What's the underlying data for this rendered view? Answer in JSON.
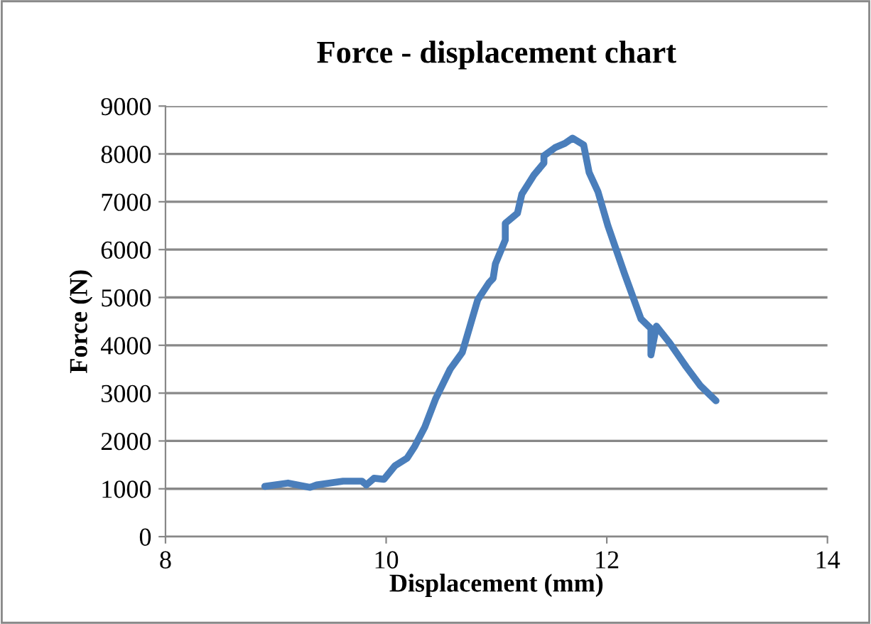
{
  "chart_data": {
    "type": "line",
    "title": "Force - displacement chart",
    "xlabel": "Displacement (mm)",
    "ylabel": "Force (N)",
    "series": [
      {
        "color": "#4a7ebb",
        "x": [
          8.9,
          9.11,
          9.31,
          9.37,
          9.61,
          9.78,
          9.82,
          9.89,
          9.98,
          10.08,
          10.19,
          10.26,
          10.35,
          10.45,
          10.58,
          10.69,
          10.76,
          10.83,
          10.93,
          10.97,
          10.99,
          11.08,
          11.08,
          11.19,
          11.23,
          11.34,
          11.43,
          11.43,
          11.53,
          11.62,
          11.69,
          11.79,
          11.84,
          11.92,
          12.01,
          12.16,
          12.31,
          12.4,
          12.4,
          12.45,
          12.57,
          12.72,
          12.85,
          12.99
        ],
        "values": [
          1050,
          1120,
          1030,
          1080,
          1160,
          1160,
          1080,
          1220,
          1200,
          1480,
          1640,
          1890,
          2290,
          2890,
          3500,
          3850,
          4400,
          4950,
          5300,
          5400,
          5700,
          6200,
          6550,
          6760,
          7160,
          7560,
          7810,
          7960,
          8130,
          8220,
          8330,
          8190,
          7610,
          7210,
          6500,
          5500,
          4550,
          4350,
          3800,
          4400,
          4050,
          3550,
          3150,
          2840
        ]
      }
    ],
    "xlim": [
      8,
      14
    ],
    "xticks": [
      8,
      10,
      12,
      14
    ],
    "ylim": [
      0,
      9000
    ],
    "yticks": [
      0,
      1000,
      2000,
      3000,
      4000,
      5000,
      6000,
      7000,
      8000,
      9000
    ],
    "grid": "y",
    "marker": "none",
    "line_style": "solid",
    "legend": false
  }
}
